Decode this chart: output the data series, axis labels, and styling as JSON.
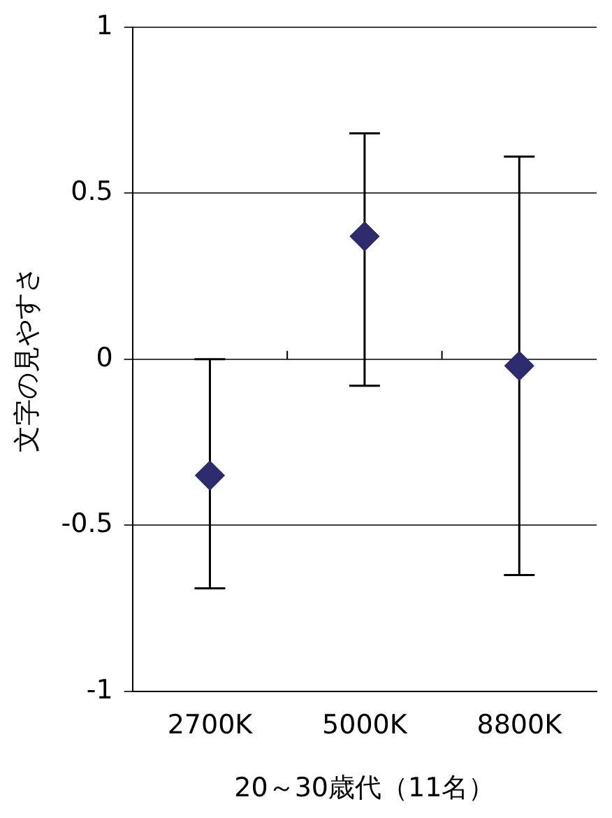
{
  "chart_data": {
    "type": "scatter",
    "xlabel": "20～30歳代（11名）",
    "ylabel": "文字の見やすさ",
    "categories": [
      "2700K",
      "5000K",
      "8800K"
    ],
    "series": [
      {
        "color": "#2e2a6e",
        "values": [
          -0.35,
          0.37,
          -0.02
        ],
        "errors": [
          [
            -0.69,
            0
          ],
          [
            -0.08,
            0.68
          ],
          [
            -0.65,
            0.61
          ]
        ]
      }
    ],
    "ylim": [
      -1,
      1
    ],
    "yticks": [
      -1,
      -0.5,
      0,
      0.5,
      1
    ],
    "grid": "y",
    "legend": false,
    "marker": "diamond"
  }
}
